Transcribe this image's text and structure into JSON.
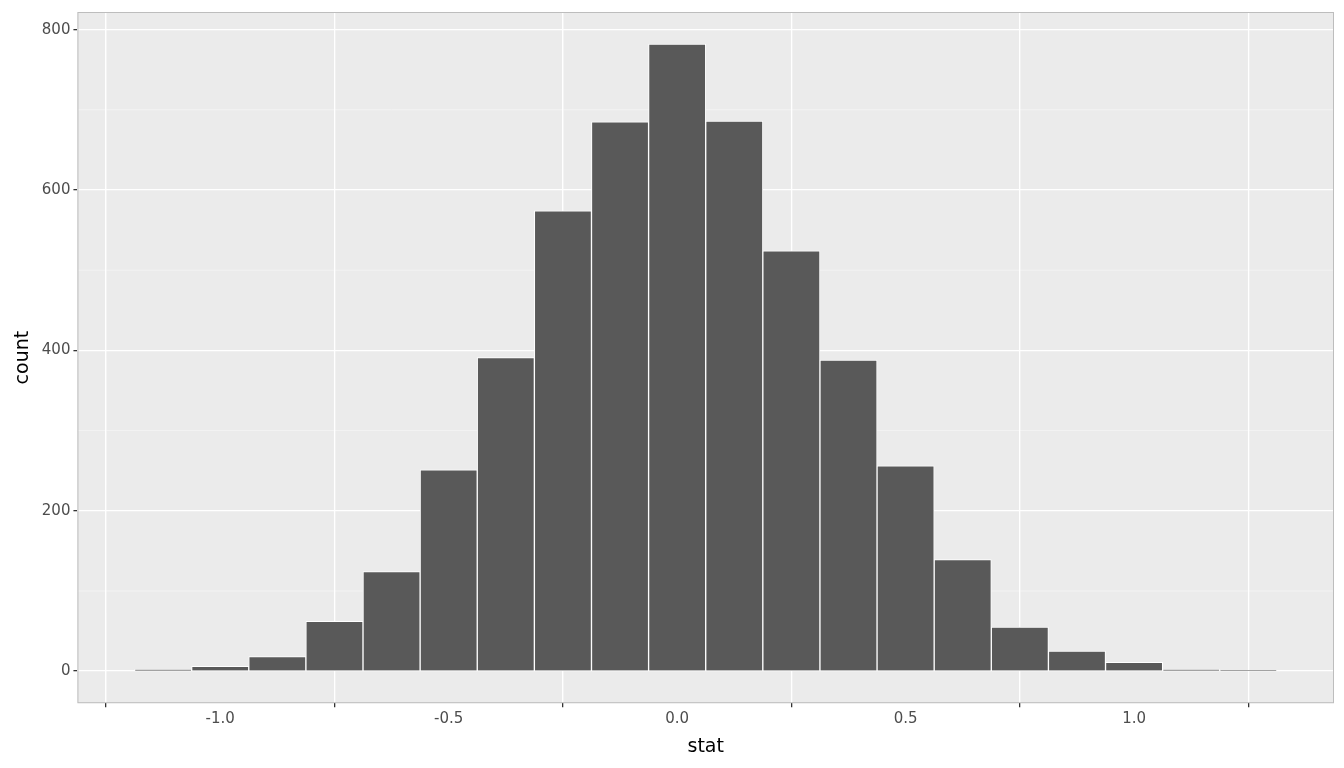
{
  "chart_data": {
    "type": "histogram",
    "x_label": "stat",
    "y_label": "count",
    "bins": [
      -1.1875,
      -1.0625,
      -0.9375,
      -0.8125,
      -0.6875,
      -0.5625,
      -0.4375,
      -0.3125,
      -0.1875,
      -0.0625,
      0.0625,
      0.1875,
      0.3125,
      0.4375,
      0.5625,
      0.6875,
      0.8125,
      0.9375,
      1.0625,
      1.1875,
      1.3125
    ],
    "values": [
      2,
      6,
      18,
      62,
      124,
      251,
      391,
      574,
      685,
      782,
      686,
      524,
      388,
      256,
      139,
      55,
      25,
      11,
      2,
      1
    ],
    "color": "#595959",
    "xlim": [
      -1.3125,
      1.4375
    ],
    "xticks": [
      {
        "value": -1.0,
        "label": "-1.0"
      },
      {
        "value": -0.5,
        "label": "-0.5"
      },
      {
        "value": 0,
        "label": "0.0"
      },
      {
        "value": 0.5,
        "label": "0.5"
      },
      {
        "value": 1.0,
        "label": "1.0"
      }
    ],
    "ylim": [
      -40,
      822
    ],
    "yticks": [
      0,
      200,
      400,
      600,
      800
    ],
    "grid": true
  }
}
